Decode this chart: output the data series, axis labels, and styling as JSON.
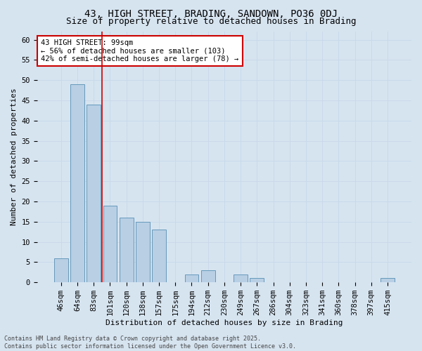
{
  "title1": "43, HIGH STREET, BRADING, SANDOWN, PO36 0DJ",
  "title2": "Size of property relative to detached houses in Brading",
  "xlabel": "Distribution of detached houses by size in Brading",
  "ylabel": "Number of detached properties",
  "categories": [
    "46sqm",
    "64sqm",
    "83sqm",
    "101sqm",
    "120sqm",
    "138sqm",
    "157sqm",
    "175sqm",
    "194sqm",
    "212sqm",
    "230sqm",
    "249sqm",
    "267sqm",
    "286sqm",
    "304sqm",
    "323sqm",
    "341sqm",
    "360sqm",
    "378sqm",
    "397sqm",
    "415sqm"
  ],
  "values": [
    6,
    49,
    44,
    19,
    16,
    15,
    13,
    0,
    2,
    3,
    0,
    2,
    1,
    0,
    0,
    0,
    0,
    0,
    0,
    0,
    1
  ],
  "bar_color": "#b8cfe4",
  "bar_edge_color": "#6699bb",
  "vline_x": 2.5,
  "vline_color": "#cc0000",
  "annotation_text": "43 HIGH STREET: 99sqm\n← 56% of detached houses are smaller (103)\n42% of semi-detached houses are larger (78) →",
  "annotation_box_color": "#ffffff",
  "annotation_box_edge": "#cc0000",
  "ylim": [
    0,
    62
  ],
  "yticks": [
    0,
    5,
    10,
    15,
    20,
    25,
    30,
    35,
    40,
    45,
    50,
    55,
    60
  ],
  "grid_color": "#c8d8e8",
  "background_color": "#d6e4f0",
  "plot_bg_color": "#d6e4f0",
  "footer_line1": "Contains HM Land Registry data © Crown copyright and database right 2025.",
  "footer_line2": "Contains public sector information licensed under the Open Government Licence v3.0.",
  "title_fontsize": 10,
  "subtitle_fontsize": 9,
  "axis_label_fontsize": 8,
  "tick_fontsize": 7.5,
  "annotation_fontsize": 7.5,
  "footer_fontsize": 6
}
